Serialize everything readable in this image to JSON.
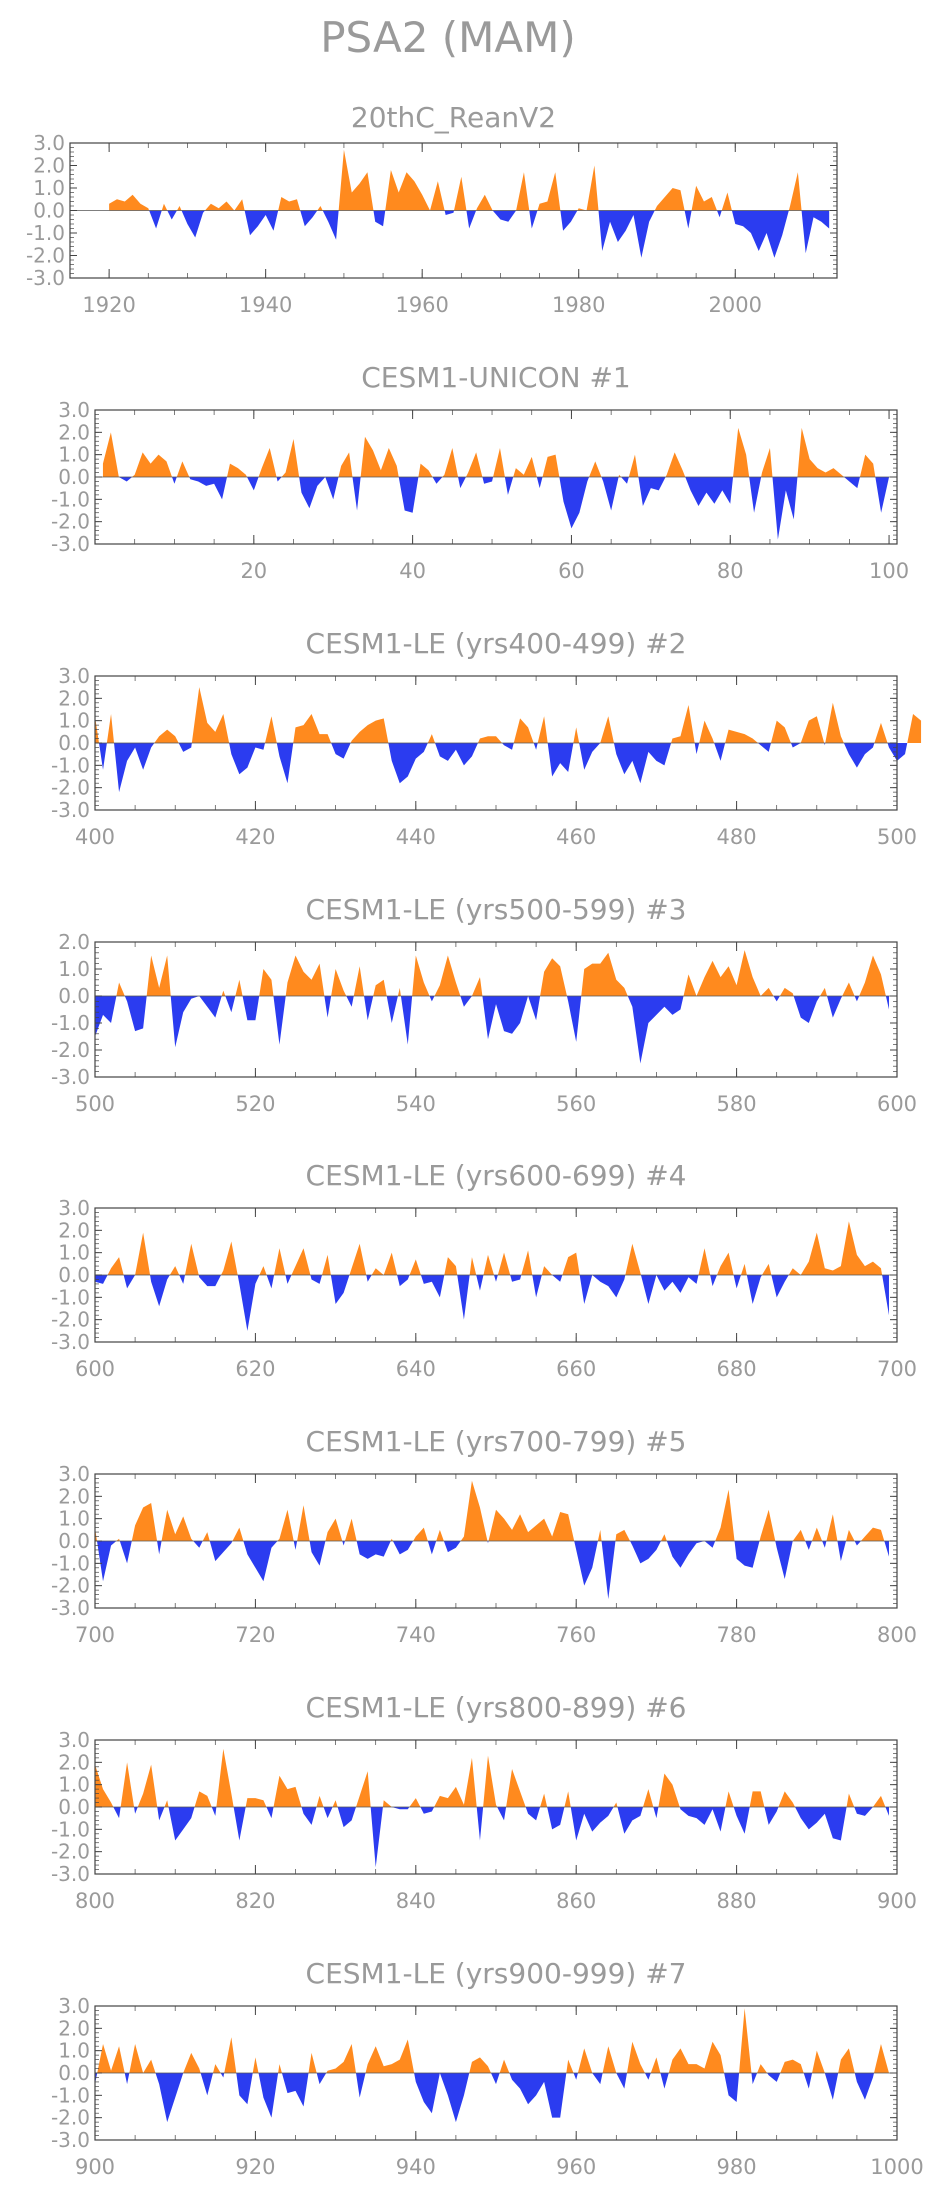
{
  "figure_title": "PSA2 (MAM)",
  "colors": {
    "positive": "#ff8a1e",
    "negative": "#2b3cf0",
    "axis": "#555555",
    "text": "#9a9a9a"
  },
  "chart_data": [
    {
      "type": "area",
      "title": "20thC_ReanV2",
      "x_start": 1920,
      "x_end": 2012,
      "xlim": [
        1915,
        2013
      ],
      "xticks": [
        1920,
        1940,
        1960,
        1980,
        2000
      ],
      "ylim": [
        -3.0,
        3.0
      ],
      "yticks": [
        "3.0",
        "2.0",
        "1.0",
        "0.0",
        "-1.0",
        "-2.0",
        "-3.0"
      ],
      "values": [
        0.3,
        0.5,
        0.4,
        0.7,
        0.3,
        0.1,
        -0.8,
        0.3,
        -0.4,
        0.2,
        -0.6,
        -1.2,
        -0.1,
        0.3,
        0.1,
        0.4,
        0.0,
        0.5,
        -1.1,
        -0.7,
        -0.2,
        -0.9,
        0.6,
        0.4,
        0.5,
        -0.7,
        -0.3,
        0.2,
        -0.5,
        -1.3,
        2.7,
        0.8,
        1.2,
        1.7,
        -0.5,
        -0.7,
        1.8,
        0.8,
        1.7,
        1.3,
        0.7,
        0.0,
        1.3,
        -0.2,
        -0.1,
        1.5,
        -0.8,
        0.1,
        0.7,
        0.0,
        -0.4,
        -0.5,
        0.0,
        1.7,
        -0.8,
        0.3,
        0.4,
        1.7,
        -0.9,
        -0.5,
        0.1,
        0.0,
        2.0,
        -1.8,
        -0.5,
        -1.4,
        -0.9,
        -0.2,
        -2.1,
        -0.5,
        0.2,
        0.6,
        1.0,
        0.9,
        -0.8,
        1.1,
        0.4,
        0.6,
        -0.3,
        0.8,
        -0.6,
        -0.7,
        -1.0,
        -1.8,
        -1.0,
        -2.1,
        -1.1,
        0.2,
        1.7,
        -1.9,
        -0.3,
        -0.5,
        -0.8
      ]
    },
    {
      "type": "area",
      "title": "CESM1-UNICON #1",
      "x_start": 1,
      "x_end": 100,
      "xlim": [
        0,
        101
      ],
      "xticks": [
        20,
        40,
        60,
        80,
        100
      ],
      "ylim": [
        -3.0,
        3.0
      ],
      "yticks": [
        "3.0",
        "2.0",
        "1.0",
        "0.0",
        "-1.0",
        "-2.0",
        "-3.0"
      ],
      "values": [
        0.6,
        2.0,
        0.0,
        -0.2,
        0.1,
        1.1,
        0.6,
        1.0,
        0.7,
        -0.3,
        0.7,
        -0.1,
        -0.2,
        -0.4,
        -0.3,
        -1.0,
        0.6,
        0.4,
        0.1,
        -0.6,
        0.4,
        1.3,
        -0.2,
        0.2,
        1.7,
        -0.7,
        -1.4,
        -0.4,
        0.0,
        -1.0,
        0.5,
        1.1,
        -1.5,
        1.8,
        1.2,
        0.3,
        1.3,
        0.5,
        -1.5,
        -1.6,
        0.6,
        0.3,
        -0.3,
        0.1,
        1.3,
        -0.5,
        0.2,
        1.1,
        -0.3,
        -0.2,
        1.3,
        -0.8,
        0.4,
        0.1,
        0.9,
        -0.5,
        0.9,
        1.0,
        -1.1,
        -2.3,
        -1.6,
        -0.2,
        0.7,
        -0.2,
        -1.5,
        0.1,
        -0.3,
        1.0,
        -1.3,
        -0.5,
        -0.6,
        0.1,
        1.1,
        0.3,
        -0.6,
        -1.3,
        -0.7,
        -1.2,
        -0.6,
        -1.2,
        2.2,
        1.0,
        -1.6,
        0.2,
        1.3,
        -2.8,
        -0.6,
        -1.9,
        2.2,
        0.8,
        0.4,
        0.2,
        0.4,
        0.1,
        -0.2,
        -0.5,
        1.0,
        0.6,
        -1.6,
        0.0
      ]
    },
    {
      "type": "area",
      "title": "CESM1-LE (yrs400-499) #2",
      "x_start": 400,
      "x_end": 499,
      "xlim": [
        400,
        500
      ],
      "xticks": [
        400,
        420,
        440,
        460,
        480,
        500
      ],
      "ylim": [
        -3.0,
        3.0
      ],
      "yticks": [
        "3.0",
        "2.0",
        "1.0",
        "0.0",
        "-1.0",
        "-2.0",
        "-3.0"
      ],
      "values": [
        1.2,
        -1.2,
        1.3,
        -2.2,
        -0.8,
        -0.2,
        -1.2,
        -0.2,
        0.3,
        0.6,
        0.3,
        -0.4,
        -0.2,
        2.5,
        0.9,
        0.5,
        1.3,
        -0.5,
        -1.4,
        -1.1,
        -0.2,
        -0.3,
        1.2,
        -0.6,
        -1.8,
        0.7,
        0.8,
        1.3,
        0.4,
        0.4,
        -0.5,
        -0.7,
        0.1,
        0.5,
        0.8,
        1.0,
        1.1,
        -0.8,
        -1.8,
        -1.5,
        -0.7,
        -0.4,
        0.4,
        -0.6,
        -0.8,
        -0.3,
        -1.0,
        -0.6,
        0.2,
        0.3,
        0.3,
        -0.1,
        -0.3,
        1.1,
        0.7,
        -0.3,
        1.2,
        -1.5,
        -0.9,
        -1.3,
        0.7,
        -1.2,
        -0.4,
        0.0,
        1.2,
        -0.5,
        -1.4,
        -0.8,
        -1.8,
        -0.4,
        -0.8,
        -1.0,
        0.2,
        0.3,
        1.7,
        -0.5,
        1.0,
        0.2,
        -0.8,
        0.6,
        0.5,
        0.4,
        0.2,
        -0.1,
        -0.4,
        1.0,
        0.7,
        -0.2,
        0.0,
        1.0,
        1.2,
        -0.1,
        1.8,
        0.3,
        -0.5,
        -1.1,
        -0.5,
        -0.2,
        0.9,
        -0.2,
        -0.8,
        -0.5,
        1.3,
        1.0
      ]
    },
    {
      "type": "area",
      "title": "CESM1-LE (yrs500-599) #3",
      "x_start": 500,
      "x_end": 599,
      "xlim": [
        500,
        600
      ],
      "xticks": [
        500,
        520,
        540,
        560,
        580,
        600
      ],
      "ylim": [
        -3.0,
        2.0
      ],
      "yticks": [
        "2.0",
        "1.0",
        "0.0",
        "-1.0",
        "-2.0",
        "-3.0"
      ],
      "values": [
        -1.5,
        -0.7,
        -1.0,
        0.5,
        -0.2,
        -1.3,
        -1.2,
        1.5,
        0.3,
        1.5,
        -1.9,
        -0.6,
        -0.1,
        0.0,
        -0.4,
        -0.8,
        0.2,
        -0.6,
        0.6,
        -0.9,
        -0.9,
        1.0,
        0.6,
        -1.8,
        0.5,
        1.5,
        0.9,
        0.6,
        1.2,
        -0.8,
        1.0,
        0.2,
        -0.4,
        1.1,
        -0.9,
        0.4,
        0.6,
        -1.0,
        0.3,
        -1.8,
        1.5,
        0.5,
        -0.2,
        0.4,
        1.5,
        0.5,
        -0.4,
        0.0,
        0.7,
        -1.6,
        -0.3,
        -1.3,
        -1.4,
        -1.0,
        0.0,
        -0.9,
        0.9,
        1.4,
        1.1,
        -0.2,
        -1.7,
        1.0,
        1.2,
        1.2,
        1.6,
        0.6,
        0.3,
        -0.4,
        -2.5,
        -1.0,
        -0.7,
        -0.4,
        -0.7,
        -0.5,
        0.8,
        0.0,
        0.7,
        1.3,
        0.7,
        1.1,
        0.4,
        1.7,
        0.7,
        0.0,
        0.3,
        -0.2,
        0.3,
        0.1,
        -0.8,
        -1.0,
        -0.2,
        0.3,
        -0.8,
        -0.1,
        0.5,
        -0.2,
        0.5,
        1.5,
        0.8,
        -0.5
      ]
    },
    {
      "type": "area",
      "title": "CESM1-LE (yrs600-699) #4",
      "x_start": 600,
      "x_end": 699,
      "xlim": [
        600,
        700
      ],
      "xticks": [
        600,
        620,
        640,
        660,
        680,
        700
      ],
      "ylim": [
        -3.0,
        3.0
      ],
      "yticks": [
        "3.0",
        "2.0",
        "1.0",
        "0.0",
        "-1.0",
        "-2.0",
        "-3.0"
      ],
      "values": [
        -0.3,
        -0.4,
        0.3,
        0.8,
        -0.6,
        0.0,
        1.9,
        -0.3,
        -1.4,
        -0.2,
        0.4,
        -0.4,
        1.4,
        -0.1,
        -0.5,
        -0.5,
        0.2,
        1.5,
        -0.4,
        -2.5,
        -0.4,
        0.4,
        -0.6,
        1.2,
        -0.4,
        0.4,
        1.2,
        -0.2,
        -0.4,
        0.9,
        -1.3,
        -0.8,
        0.3,
        1.4,
        -0.3,
        0.3,
        0.0,
        1.0,
        -0.5,
        -0.2,
        0.7,
        -0.4,
        -0.3,
        -1.0,
        0.8,
        0.4,
        -2.0,
        0.8,
        -0.7,
        0.9,
        -0.3,
        1.0,
        -0.3,
        -0.2,
        1.1,
        -1.0,
        0.4,
        0.0,
        -0.3,
        0.8,
        1.0,
        -1.3,
        0.0,
        -0.3,
        -0.5,
        -1.0,
        -0.2,
        1.4,
        0.1,
        -1.3,
        0.0,
        -0.7,
        -0.3,
        -0.8,
        -0.1,
        -0.4,
        1.2,
        -0.5,
        0.4,
        1.0,
        -0.6,
        0.5,
        -1.3,
        -0.1,
        0.5,
        -1.0,
        -0.3,
        0.3,
        0.0,
        0.6,
        1.9,
        0.3,
        0.2,
        0.4,
        2.4,
        0.9,
        0.4,
        0.6,
        0.3,
        -1.8
      ]
    },
    {
      "type": "area",
      "title": "CESM1-LE (yrs700-799) #5",
      "x_start": 700,
      "x_end": 799,
      "xlim": [
        700,
        800
      ],
      "xticks": [
        700,
        720,
        740,
        760,
        780,
        800
      ],
      "ylim": [
        -3.0,
        3.0
      ],
      "yticks": [
        "3.0",
        "2.0",
        "1.0",
        "0.0",
        "-1.0",
        "-2.0",
        "-3.0"
      ],
      "values": [
        0.6,
        -1.8,
        -0.2,
        0.1,
        -1.0,
        0.7,
        1.5,
        1.7,
        -0.6,
        1.4,
        0.3,
        1.1,
        0.1,
        -0.3,
        0.4,
        -0.9,
        -0.5,
        -0.1,
        0.6,
        -0.6,
        -1.2,
        -1.8,
        -0.3,
        0.1,
        1.4,
        -0.4,
        1.6,
        -0.5,
        -1.1,
        0.4,
        1.0,
        -0.2,
        1.0,
        -0.6,
        -0.8,
        -0.6,
        -0.7,
        0.1,
        -0.6,
        -0.4,
        0.2,
        0.6,
        -0.6,
        0.5,
        -0.5,
        -0.3,
        0.2,
        2.7,
        1.5,
        -0.1,
        1.4,
        1.0,
        0.5,
        1.2,
        0.4,
        0.7,
        1.0,
        0.2,
        1.3,
        1.2,
        -0.4,
        -2.0,
        -1.2,
        0.5,
        -2.6,
        0.3,
        0.5,
        -0.2,
        -1.0,
        -0.8,
        -0.4,
        0.3,
        -0.7,
        -1.2,
        -0.6,
        -0.1,
        0.0,
        -0.3,
        0.6,
        2.3,
        -0.8,
        -1.1,
        -1.2,
        0.2,
        1.4,
        -0.3,
        -1.7,
        0.0,
        0.5,
        -0.4,
        0.6,
        -0.3,
        1.2,
        -0.9,
        0.5,
        -0.2,
        0.2,
        0.6,
        0.5,
        -0.7
      ]
    },
    {
      "type": "area",
      "title": "CESM1-LE (yrs800-899) #6",
      "x_start": 800,
      "x_end": 899,
      "xlim": [
        800,
        900
      ],
      "xticks": [
        800,
        820,
        840,
        860,
        880,
        900
      ],
      "ylim": [
        -3.0,
        3.0
      ],
      "yticks": [
        "3.0",
        "2.0",
        "1.0",
        "0.0",
        "-1.0",
        "-2.0",
        "-3.0"
      ],
      "values": [
        1.9,
        0.8,
        0.2,
        -0.5,
        2.0,
        -0.3,
        0.6,
        1.9,
        -0.6,
        0.3,
        -1.5,
        -1.0,
        -0.5,
        0.7,
        0.5,
        -0.4,
        2.6,
        0.6,
        -1.5,
        0.4,
        0.4,
        0.3,
        -0.5,
        1.4,
        0.8,
        0.9,
        -0.3,
        -0.8,
        0.5,
        -0.5,
        0.3,
        -0.9,
        -0.6,
        0.5,
        1.6,
        -2.7,
        0.3,
        0.0,
        -0.1,
        -0.1,
        0.4,
        -0.3,
        -0.2,
        0.5,
        0.4,
        0.9,
        0.1,
        2.2,
        -1.5,
        2.3,
        0.1,
        -0.6,
        1.7,
        0.7,
        -0.3,
        -0.6,
        0.6,
        -1.0,
        -0.8,
        0.7,
        -1.5,
        -0.3,
        -1.1,
        -0.7,
        -0.4,
        0.2,
        -1.2,
        -0.6,
        -0.4,
        0.8,
        -0.5,
        1.5,
        1.0,
        -0.1,
        -0.4,
        -0.5,
        -0.8,
        -0.1,
        -1.1,
        0.7,
        -0.4,
        -1.2,
        0.7,
        0.7,
        -0.8,
        -0.2,
        0.7,
        0.2,
        -0.5,
        -1.0,
        -0.7,
        -0.3,
        -1.4,
        -1.5,
        0.6,
        -0.3,
        -0.4,
        0.0,
        0.5,
        -0.4
      ]
    },
    {
      "type": "area",
      "title": "CESM1-LE (yrs900-999) #7",
      "x_start": 900,
      "x_end": 999,
      "xlim": [
        900,
        1000
      ],
      "xticks": [
        900,
        920,
        940,
        960,
        980,
        1000
      ],
      "ylim": [
        -3.0,
        3.0
      ],
      "yticks": [
        "3.0",
        "2.0",
        "1.0",
        "0.0",
        "-1.0",
        "-2.0",
        "-3.0"
      ],
      "values": [
        -0.5,
        1.3,
        0.1,
        1.2,
        -0.5,
        1.3,
        0.0,
        0.6,
        -0.5,
        -2.2,
        -1.1,
        0.0,
        0.9,
        0.2,
        -1.0,
        0.4,
        -0.2,
        1.6,
        -1.0,
        -1.4,
        0.7,
        -1.1,
        -2.0,
        0.4,
        -0.9,
        -0.8,
        -1.5,
        0.9,
        -0.5,
        0.1,
        0.2,
        0.5,
        1.3,
        -1.1,
        0.4,
        1.2,
        0.3,
        0.4,
        0.6,
        1.5,
        -0.4,
        -1.3,
        -1.8,
        0.0,
        -1.0,
        -2.2,
        -1.0,
        0.5,
        0.7,
        0.3,
        -0.5,
        0.6,
        -0.3,
        -0.7,
        -1.4,
        -1.0,
        -0.4,
        -2.0,
        -2.0,
        0.6,
        -0.3,
        1.1,
        0.0,
        -0.5,
        1.2,
        0.0,
        -0.7,
        1.4,
        0.4,
        -0.3,
        0.7,
        -0.7,
        0.6,
        1.1,
        0.4,
        0.4,
        0.2,
        1.4,
        0.8,
        -1.0,
        -1.3,
        2.9,
        -0.5,
        0.4,
        -0.1,
        -0.4,
        0.5,
        0.6,
        0.4,
        -0.7,
        1.0,
        0.0,
        -1.2,
        0.6,
        1.1,
        -0.4,
        -1.2,
        -0.2,
        1.3,
        0.0
      ]
    }
  ]
}
